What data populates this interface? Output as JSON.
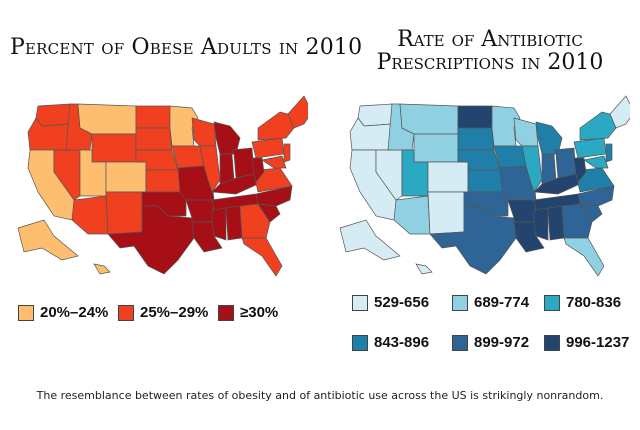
{
  "left": {
    "title_line1": "Percent of Obese Adults in 2010",
    "legend": [
      {
        "label": "20%–24%",
        "color": "#fdbf6f"
      },
      {
        "label": "25%–29%",
        "color": "#f0401f"
      },
      {
        "label": "≥30%",
        "color": "#a50f15"
      }
    ]
  },
  "right": {
    "title_line1": "Rate of Antibiotic",
    "title_line2": "Prescriptions in 2010",
    "legend": [
      {
        "label": "529-656",
        "color": "#d6ecf5"
      },
      {
        "label": "689-774",
        "color": "#8fd0e2"
      },
      {
        "label": "780-836",
        "color": "#2ba8c2"
      },
      {
        "label": "843-896",
        "color": "#1f7fa8"
      },
      {
        "label": "899-972",
        "color": "#2e6496"
      },
      {
        "label": "996-1237",
        "color": "#23446e"
      }
    ]
  },
  "caption": "The resemblance between rates of obesity and of antibiotic use across the US is strikingly nonrandom."
}
